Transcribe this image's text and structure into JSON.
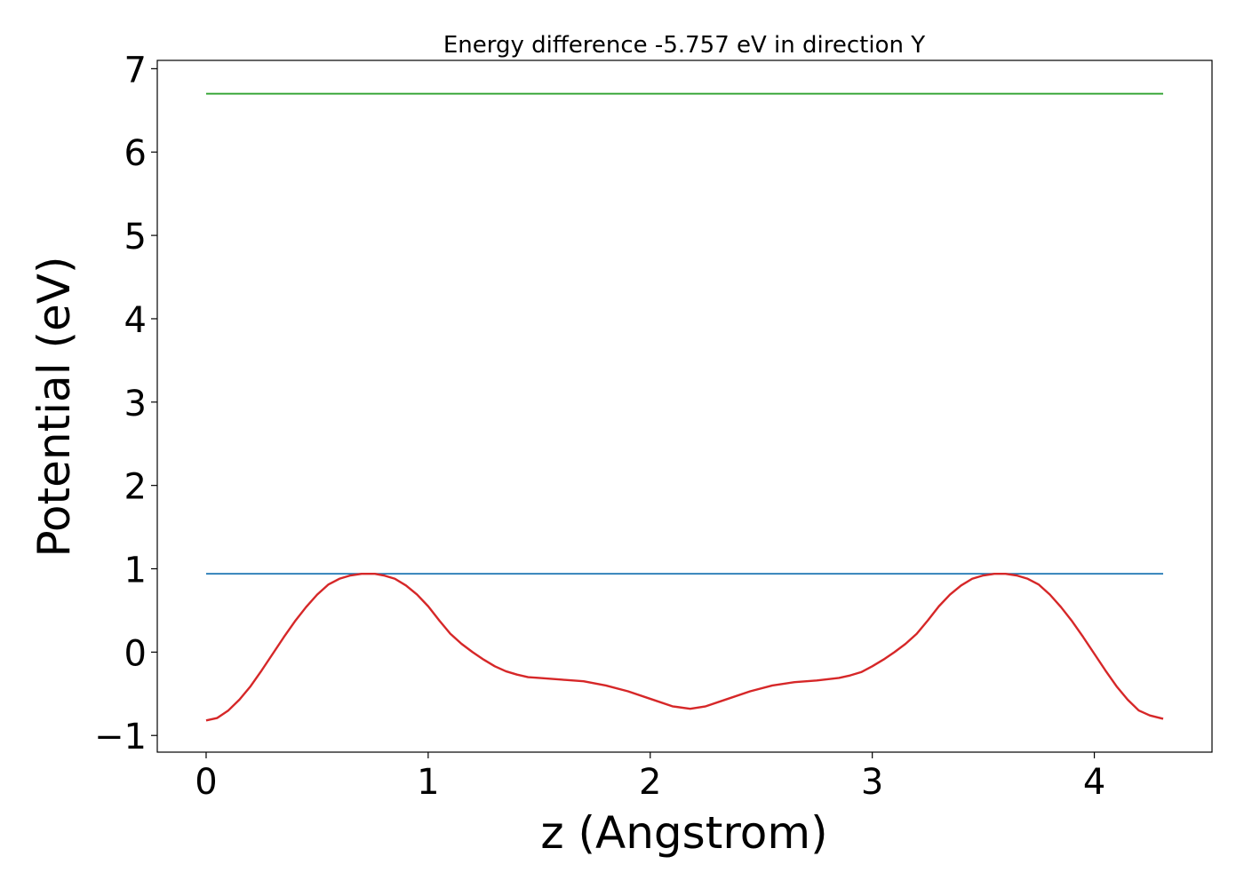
{
  "chart_data": {
    "type": "line",
    "title": "Energy difference -5.757 eV in direction Y",
    "xlabel": "z (Angstrom)",
    "ylabel": "Potential (eV)",
    "xlim": [
      -0.22,
      4.53
    ],
    "ylim": [
      -1.2,
      7.1
    ],
    "xticks": [
      0,
      1,
      2,
      3,
      4
    ],
    "xtick_labels": [
      "0",
      "1",
      "2",
      "3",
      "4"
    ],
    "yticks": [
      -1,
      0,
      1,
      2,
      3,
      4,
      5,
      6,
      7
    ],
    "ytick_labels": [
      "−1",
      "0",
      "1",
      "2",
      "3",
      "4",
      "5",
      "6",
      "7"
    ],
    "grid": false,
    "legend": "none",
    "series": [
      {
        "color": "#1f77b4",
        "x": [
          0,
          4.31
        ],
        "y": [
          0.94,
          0.94
        ]
      },
      {
        "color": "#2ca02c",
        "x": [
          0,
          4.31
        ],
        "y": [
          6.7,
          6.7
        ]
      },
      {
        "color": "#d62728",
        "x": [
          0,
          0.05,
          0.1,
          0.15,
          0.2,
          0.25,
          0.3,
          0.35,
          0.4,
          0.45,
          0.5,
          0.55,
          0.6,
          0.65,
          0.7,
          0.76,
          0.8,
          0.85,
          0.9,
          0.95,
          1.0,
          1.05,
          1.1,
          1.15,
          1.2,
          1.25,
          1.3,
          1.35,
          1.4,
          1.45,
          1.5,
          1.6,
          1.7,
          1.8,
          1.9,
          2.0,
          2.1,
          2.18,
          2.25,
          2.35,
          2.45,
          2.55,
          2.65,
          2.75,
          2.85,
          2.9,
          2.95,
          3.0,
          3.05,
          3.1,
          3.15,
          3.2,
          3.25,
          3.3,
          3.35,
          3.4,
          3.45,
          3.5,
          3.55,
          3.6,
          3.65,
          3.7,
          3.75,
          3.8,
          3.85,
          3.9,
          3.95,
          4.0,
          4.05,
          4.1,
          4.15,
          4.2,
          4.25,
          4.31
        ],
        "y": [
          -0.82,
          -0.79,
          -0.7,
          -0.57,
          -0.41,
          -0.22,
          -0.02,
          0.18,
          0.37,
          0.54,
          0.69,
          0.81,
          0.88,
          0.92,
          0.94,
          0.94,
          0.92,
          0.88,
          0.8,
          0.69,
          0.55,
          0.38,
          0.22,
          0.1,
          0.0,
          -0.09,
          -0.17,
          -0.23,
          -0.27,
          -0.3,
          -0.31,
          -0.33,
          -0.35,
          -0.4,
          -0.47,
          -0.56,
          -0.65,
          -0.68,
          -0.65,
          -0.56,
          -0.47,
          -0.4,
          -0.36,
          -0.34,
          -0.31,
          -0.28,
          -0.24,
          -0.17,
          -0.09,
          0.0,
          0.1,
          0.22,
          0.38,
          0.55,
          0.69,
          0.8,
          0.88,
          0.92,
          0.94,
          0.94,
          0.92,
          0.88,
          0.81,
          0.69,
          0.54,
          0.37,
          0.18,
          -0.02,
          -0.22,
          -0.41,
          -0.57,
          -0.7,
          -0.76,
          -0.8
        ]
      }
    ]
  }
}
